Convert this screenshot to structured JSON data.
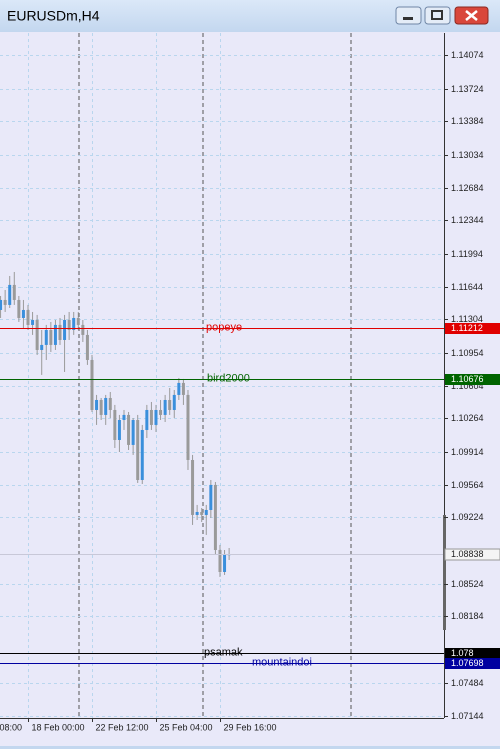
{
  "window": {
    "title": "EURUSDm,H4"
  },
  "chart_data": {
    "type": "candlestick",
    "categories": [
      "08:00",
      null,
      null,
      null,
      null,
      null,
      null,
      "18 Feb 00:00",
      null,
      null,
      null,
      null,
      null,
      null,
      null,
      null,
      null,
      null,
      null,
      null,
      null,
      "22 Feb 12:00",
      null,
      null,
      null,
      null,
      null,
      null,
      null,
      null,
      null,
      null,
      null,
      null,
      null,
      "25 Feb 04:00",
      null,
      null,
      null,
      null,
      null,
      null,
      null,
      null,
      null,
      null,
      null,
      null,
      null,
      "29 Feb 16:00",
      null,
      null
    ],
    "open": [
      null,
      1.11402,
      1.11507,
      1.11455,
      1.11665,
      1.11507,
      1.11318,
      1.11402,
      1.11245,
      1.11297,
      1.10982,
      1.11035,
      1.11192,
      1.11035,
      1.11245,
      1.11087,
      1.11297,
      1.11192,
      1.11318,
      1.11245,
      1.1114,
      1.10877,
      1.10352,
      1.10457,
      1.103,
      1.10478,
      1.10352,
      1.10037,
      1.10247,
      1.103,
      1.09985,
      1.10247,
      1.09617,
      1.10142,
      1.10352,
      1.10195,
      1.10352,
      1.103,
      1.10457,
      1.10352,
      1.1051,
      1.10636,
      1.1051,
      1.09827,
      1.0925,
      1.09281,
      1.0925,
      1.09302,
      1.09565,
      1.08882,
      1.08651,
      1.0883
    ],
    "high": [
      null,
      1.11549,
      1.11612,
      1.11759,
      1.11801,
      1.11549,
      1.11507,
      1.11455,
      1.11381,
      1.1135,
      1.11192,
      1.11245,
      1.11276,
      1.11297,
      1.11318,
      1.1135,
      1.11381,
      1.11381,
      1.11381,
      1.11297,
      1.11192,
      1.1093,
      1.1051,
      1.10478,
      1.1051,
      1.10541,
      1.10405,
      1.103,
      1.10352,
      1.10331,
      1.10268,
      1.103,
      1.10195,
      1.10405,
      1.10436,
      1.10405,
      1.10457,
      1.1051,
      1.10583,
      1.10562,
      1.10688,
      1.10678,
      1.10562,
      1.0988,
      1.09355,
      1.09323,
      1.09355,
      1.09617,
      1.09596,
      1.08935,
      1.08882,
      1.08903
    ],
    "low": [
      null,
      1.11318,
      1.11381,
      1.11423,
      1.11455,
      1.11276,
      1.11213,
      1.11192,
      1.1114,
      1.1093,
      1.1072,
      1.10877,
      1.10961,
      1.10982,
      1.11035,
      1.10751,
      1.11087,
      1.1114,
      1.11192,
      1.11066,
      1.10825,
      1.10331,
      1.10195,
      1.10247,
      1.10195,
      1.10268,
      1.09953,
      1.09911,
      1.10142,
      1.09932,
      1.0988,
      1.09586,
      1.09575,
      1.10058,
      1.10142,
      1.10121,
      1.10247,
      1.10226,
      1.103,
      1.10268,
      1.10457,
      1.10405,
      1.09722,
      1.09145,
      1.09197,
      1.09176,
      1.0904,
      1.09218,
      1.0883,
      1.08599,
      1.0862,
      1.08777
    ],
    "close": [
      null,
      1.11507,
      1.11455,
      1.11665,
      1.11507,
      1.11318,
      1.11402,
      1.11245,
      1.11297,
      1.10982,
      1.11035,
      1.11192,
      1.11035,
      1.11245,
      1.11087,
      1.11297,
      1.11192,
      1.11318,
      1.11245,
      1.1114,
      1.10877,
      1.10352,
      1.10457,
      1.103,
      1.10478,
      1.10352,
      1.10037,
      1.10247,
      1.103,
      1.09985,
      1.10247,
      1.09617,
      1.10142,
      1.10352,
      1.10195,
      1.10352,
      1.103,
      1.10457,
      1.10352,
      1.1051,
      1.10636,
      1.1051,
      1.09827,
      1.0925,
      1.09281,
      1.0925,
      1.09302,
      1.09565,
      1.08882,
      1.08651,
      1.0883,
      1.08838
    ],
    "up_color": "#3a8fdc",
    "down_color": "#9a9a9a",
    "ylim": [
      1.07118,
      1.1431
    ],
    "yticks": [
      1.14074,
      1.13724,
      1.13384,
      1.13034,
      1.12684,
      1.12344,
      1.11994,
      1.11644,
      1.11304,
      1.10954,
      1.10604,
      1.10264,
      1.09914,
      1.09564,
      1.09224,
      1.08524,
      1.08184,
      1.07484,
      1.07144
    ],
    "grid": true,
    "hlines": [
      {
        "name": "popeye",
        "price": 1.11212,
        "color": "#e00000"
      },
      {
        "name": "bird2000",
        "price": 1.10676,
        "color": "#006400"
      },
      {
        "name": "psamak",
        "price": 1.078,
        "color": "#000000"
      },
      {
        "name": "mountaindoi",
        "price": 1.07698,
        "color": "#0000a0"
      }
    ],
    "current_price": 1.08838
  }
}
